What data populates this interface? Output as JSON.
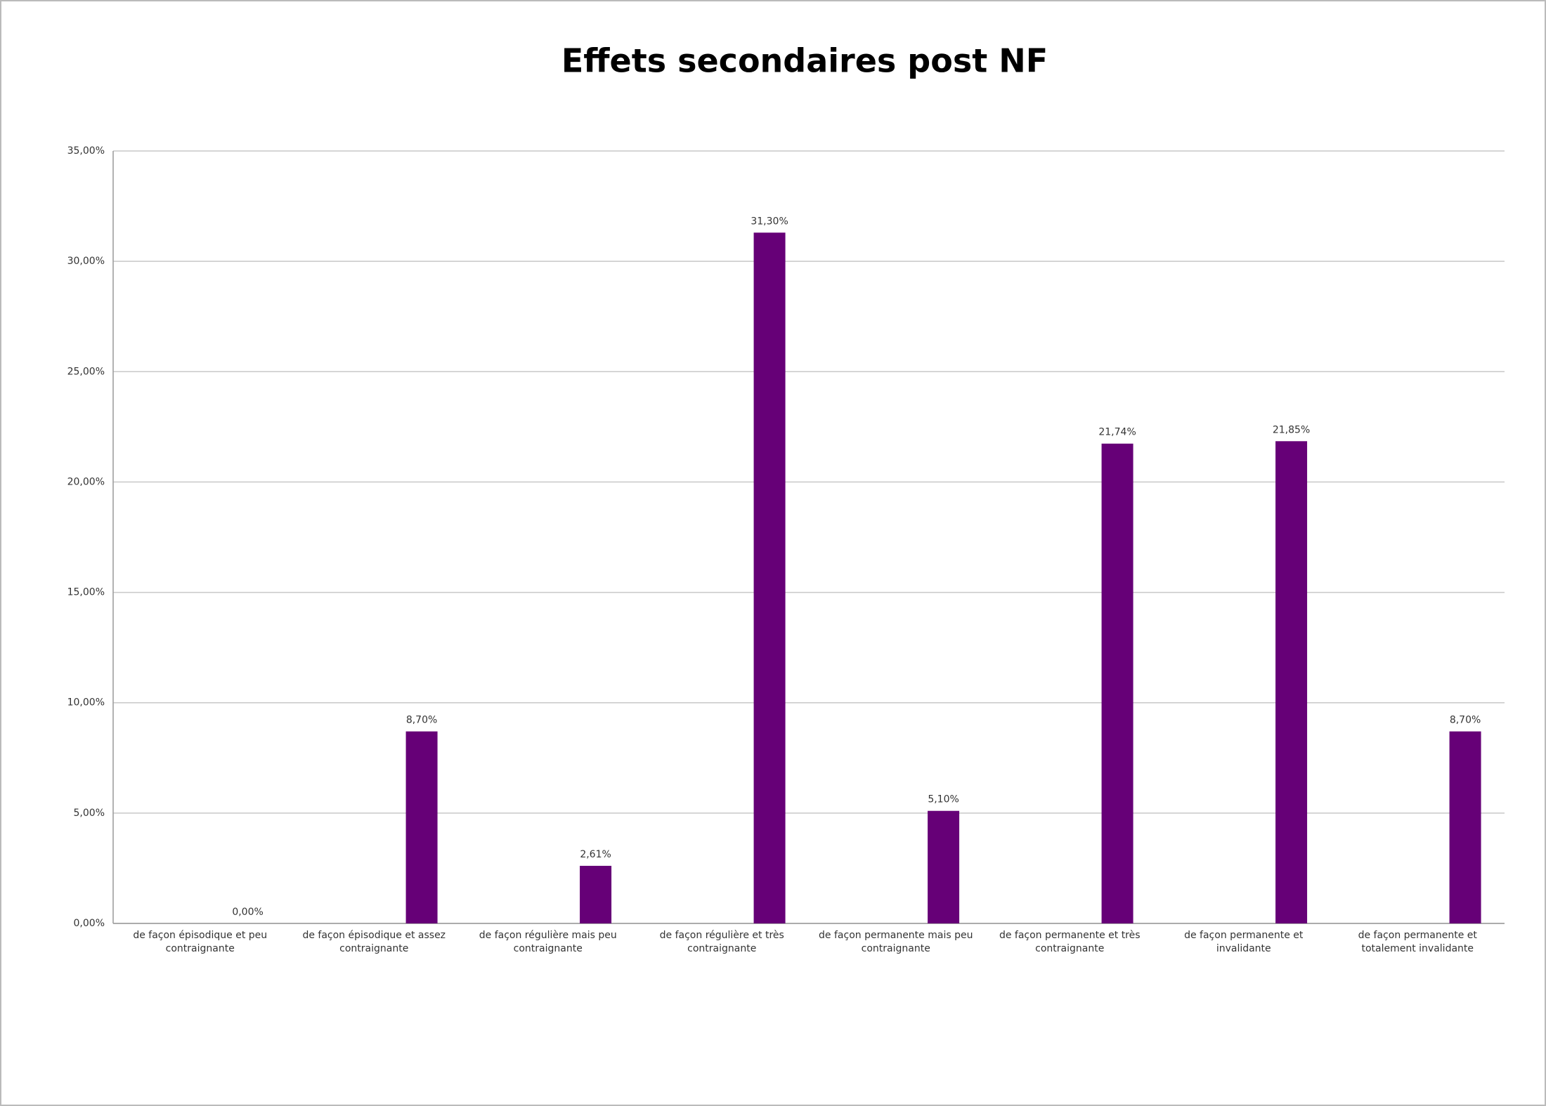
{
  "chart_data": {
    "type": "bar",
    "title": "Effets secondaires post NF",
    "categories": [
      "de façon épisodique et peu contraignante",
      "de façon épisodique et assez contraignante",
      "de façon régulière mais peu contraignante",
      "de façon régulière et très contraignante",
      "de façon permanente mais peu contraignante",
      "de façon permanente et très contraignante",
      "de façon permanente et invalidante",
      "de façon permanente et totalement invalidante"
    ],
    "values": [
      0,
      8.7,
      2.61,
      31.3,
      5.1,
      21.74,
      21.85,
      8.7
    ],
    "value_labels": [
      "0,00%",
      "8,70%",
      "2,61%",
      "31,30%",
      "5,10%",
      "21,74%",
      "21,85%",
      "8,70%"
    ],
    "color": "#660077",
    "ylim": [
      0,
      35
    ],
    "yticks": [
      {
        "value": 0,
        "label": "0,00%"
      },
      {
        "value": 5,
        "label": "5,00%"
      },
      {
        "value": 10,
        "label": "10,00%"
      },
      {
        "value": 15,
        "label": "15,00%"
      },
      {
        "value": 20,
        "label": "20,00%"
      },
      {
        "value": 25,
        "label": "25,00%"
      },
      {
        "value": 30,
        "label": "30,00%"
      },
      {
        "value": 35,
        "label": "35,00%"
      }
    ],
    "grid": true
  }
}
